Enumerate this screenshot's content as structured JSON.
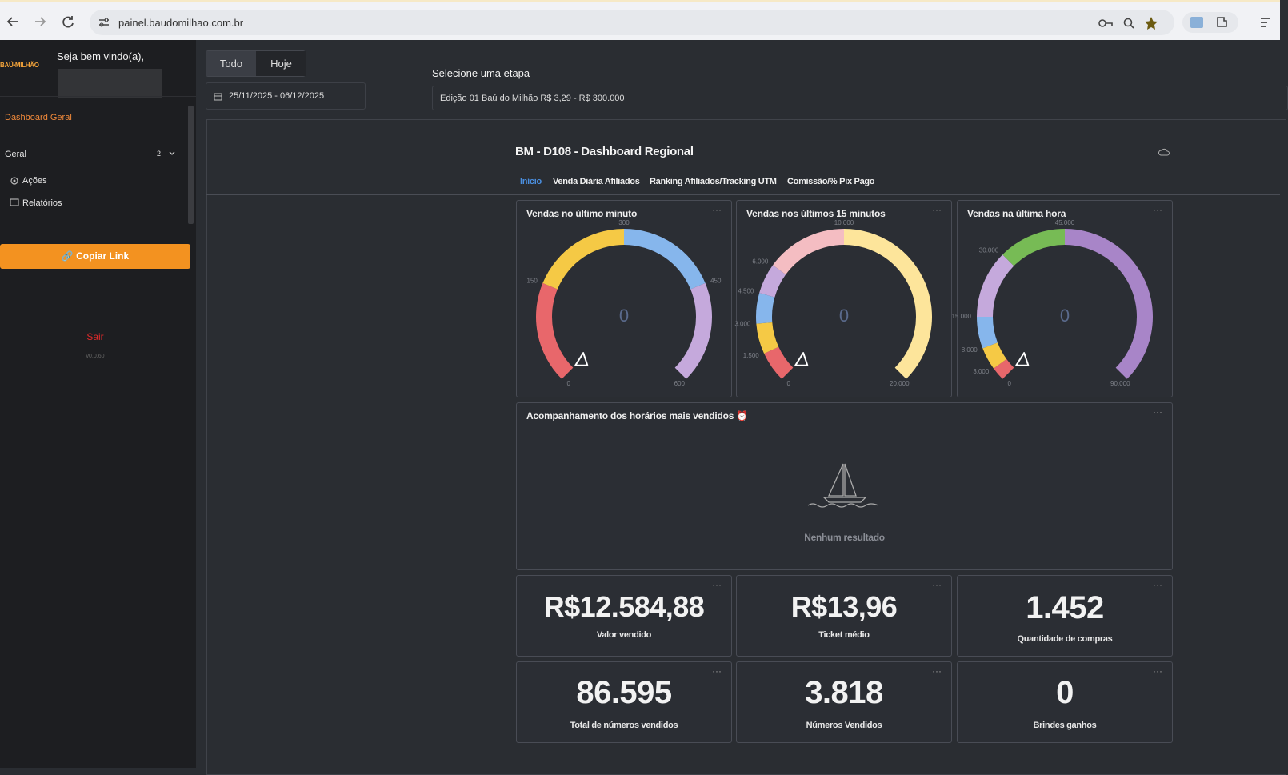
{
  "browser": {
    "url": "painel.baudomilhao.com.br"
  },
  "sidebar": {
    "logo": "BAÚ•MILHÃO",
    "welcome": "Seja bem vindo(a),",
    "active_item": "Dashboard Geral",
    "group": {
      "label": "Geral",
      "count": 2,
      "items": [
        "Ações",
        "Relatórios"
      ]
    },
    "copy_button": "Copiar Link",
    "logout": "Sair",
    "version": "v0.0.60"
  },
  "filters": {
    "tabs": [
      "Todo",
      "Hoje"
    ],
    "date_range": "25/11/2025 - 06/12/2025",
    "stage_label": "Selecione uma etapa",
    "stage_value": "Edição 01 Baú do Milhão R$ 3,29 - R$ 300.000"
  },
  "dashboard": {
    "title": "BM - D108 - Dashboard Regional",
    "tabs": [
      "Início",
      "Venda Diária Afiliados",
      "Ranking Afiliados/Tracking UTM",
      "Comissão/% Pix Pago"
    ],
    "active_tab": 0,
    "gauges": [
      {
        "title": "Vendas no último minuto",
        "value": 0,
        "ticks": [
          0,
          150,
          300,
          450,
          600
        ],
        "band_colors": [
          "#e8676b",
          "#f5c945",
          "#86b6ec",
          "#c5a9dc"
        ]
      },
      {
        "title": "Vendas nos últimos 15 minutos",
        "value": 0,
        "ticks": [
          0,
          {
            "value": 1500,
            "label": "1.500"
          },
          {
            "value": 3000,
            "label": "3.000"
          },
          {
            "value": 4500,
            "label": "4.500"
          },
          {
            "value": 6000,
            "label": "6.000"
          },
          {
            "value": 10000,
            "label": "10.000"
          },
          {
            "value": 20000,
            "label": "20.000"
          }
        ],
        "band_colors": [
          "#e8676b",
          "#f5c945",
          "#86b6ec",
          "#c5a9dc",
          "#f4bdc2",
          "#fde59b"
        ]
      },
      {
        "title": "Vendas na última hora",
        "value": 0,
        "ticks": [
          0,
          {
            "value": 3000,
            "label": "3.000"
          },
          {
            "value": 8000,
            "label": "8.000"
          },
          {
            "value": 15000,
            "label": "15.000"
          },
          {
            "value": 30000,
            "label": "30.000"
          },
          {
            "value": 45000,
            "label": "45.000"
          },
          {
            "value": 90000,
            "label": "90.000"
          }
        ],
        "band_colors": [
          "#e8676b",
          "#f5c945",
          "#86b6ec",
          "#c5a9dc",
          "#77bb55",
          "#a885c8"
        ]
      }
    ],
    "hourly": {
      "title": "Acompanhamento dos horários mais vendidos ⏰",
      "empty": "Nenhum resultado"
    },
    "kpis": [
      {
        "value": "R$12.584,88",
        "label": "Valor vendido"
      },
      {
        "value": "R$13,96",
        "label": "Ticket médio"
      },
      {
        "value": "1.452",
        "label": "Quantidade de compras"
      },
      {
        "value": "86.595",
        "label": "Total de números vendidos"
      },
      {
        "value": "3.818",
        "label": "Números Vendidos"
      },
      {
        "value": "0",
        "label": "Brindes ganhos"
      }
    ]
  }
}
